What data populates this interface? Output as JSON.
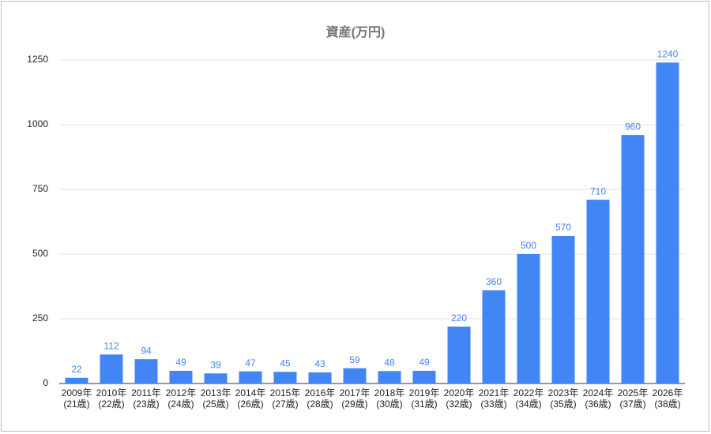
{
  "chart_data": {
    "type": "bar",
    "title": "資産(万円)",
    "categories": [
      [
        "2009年",
        "(21歳)"
      ],
      [
        "2010年",
        "(22歳)"
      ],
      [
        "2011年",
        "(23歳)"
      ],
      [
        "2012年",
        "(24歳)"
      ],
      [
        "2013年",
        "(25歳)"
      ],
      [
        "2014年",
        "(26歳)"
      ],
      [
        "2015年",
        "(27歳)"
      ],
      [
        "2016年",
        "(28歳)"
      ],
      [
        "2017年",
        "(29歳)"
      ],
      [
        "2018年",
        "(30歳)"
      ],
      [
        "2019年",
        "(31歳)"
      ],
      [
        "2020年",
        "(32歳)"
      ],
      [
        "2021年",
        "(33歳)"
      ],
      [
        "2022年",
        "(34歳)"
      ],
      [
        "2023年",
        "(35歳)"
      ],
      [
        "2024年",
        "(36歳)"
      ],
      [
        "2025年",
        "(37歳)"
      ],
      [
        "2026年",
        "(38歳)"
      ]
    ],
    "values": [
      22,
      112,
      94,
      49,
      39,
      47,
      45,
      43,
      59,
      48,
      49,
      220,
      360,
      500,
      570,
      710,
      960,
      1240
    ],
    "color": "#4285f4",
    "ylim": [
      0,
      1250
    ],
    "yticks": [
      0,
      250,
      500,
      750,
      1000,
      1250
    ],
    "grid": true
  }
}
